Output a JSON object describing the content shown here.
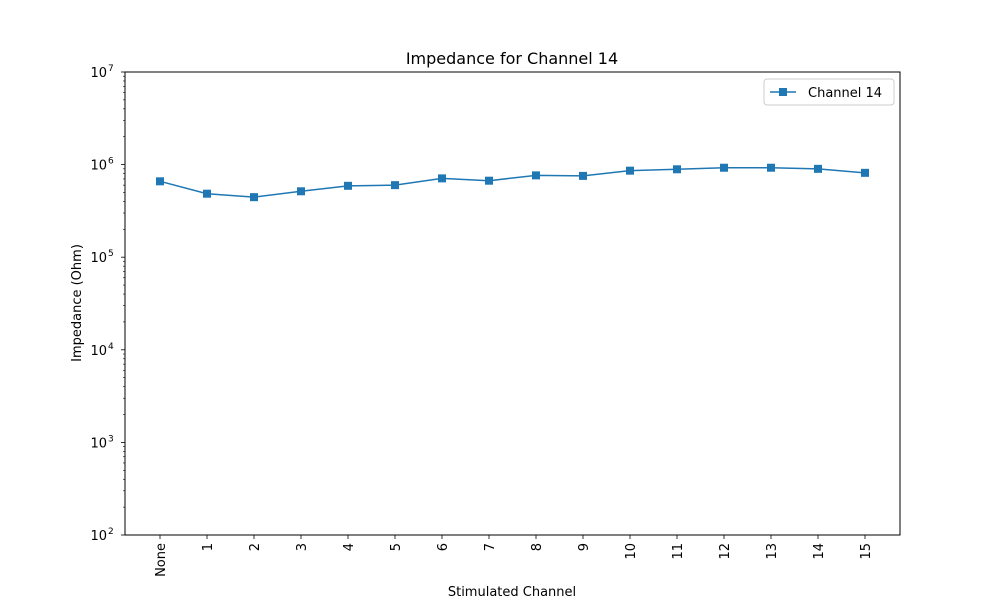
{
  "chart_data": {
    "type": "line",
    "title": "Impedance for Channel 14",
    "xlabel": "Stimulated Channel",
    "ylabel": "Impedance (Ohm)",
    "yscale": "log",
    "ylim": [
      100,
      10000000
    ],
    "y_ticks": [
      {
        "value": 100,
        "base": "10",
        "exp": "2"
      },
      {
        "value": 1000,
        "base": "10",
        "exp": "3"
      },
      {
        "value": 10000,
        "base": "10",
        "exp": "4"
      },
      {
        "value": 100000,
        "base": "10",
        "exp": "5"
      },
      {
        "value": 1000000,
        "base": "10",
        "exp": "6"
      },
      {
        "value": 10000000,
        "base": "10",
        "exp": "7"
      }
    ],
    "categories": [
      "None",
      "1",
      "2",
      "3",
      "4",
      "5",
      "6",
      "7",
      "8",
      "9",
      "10",
      "11",
      "12",
      "13",
      "14",
      "15"
    ],
    "series": [
      {
        "name": "Channel 14",
        "color": "#1f77b4",
        "marker": "square",
        "values": [
          660000,
          485000,
          445000,
          515000,
          590000,
          600000,
          710000,
          670000,
          765000,
          755000,
          860000,
          890000,
          925000,
          925000,
          900000,
          815000
        ]
      }
    ],
    "legend_position": "top-right",
    "grid": false
  }
}
